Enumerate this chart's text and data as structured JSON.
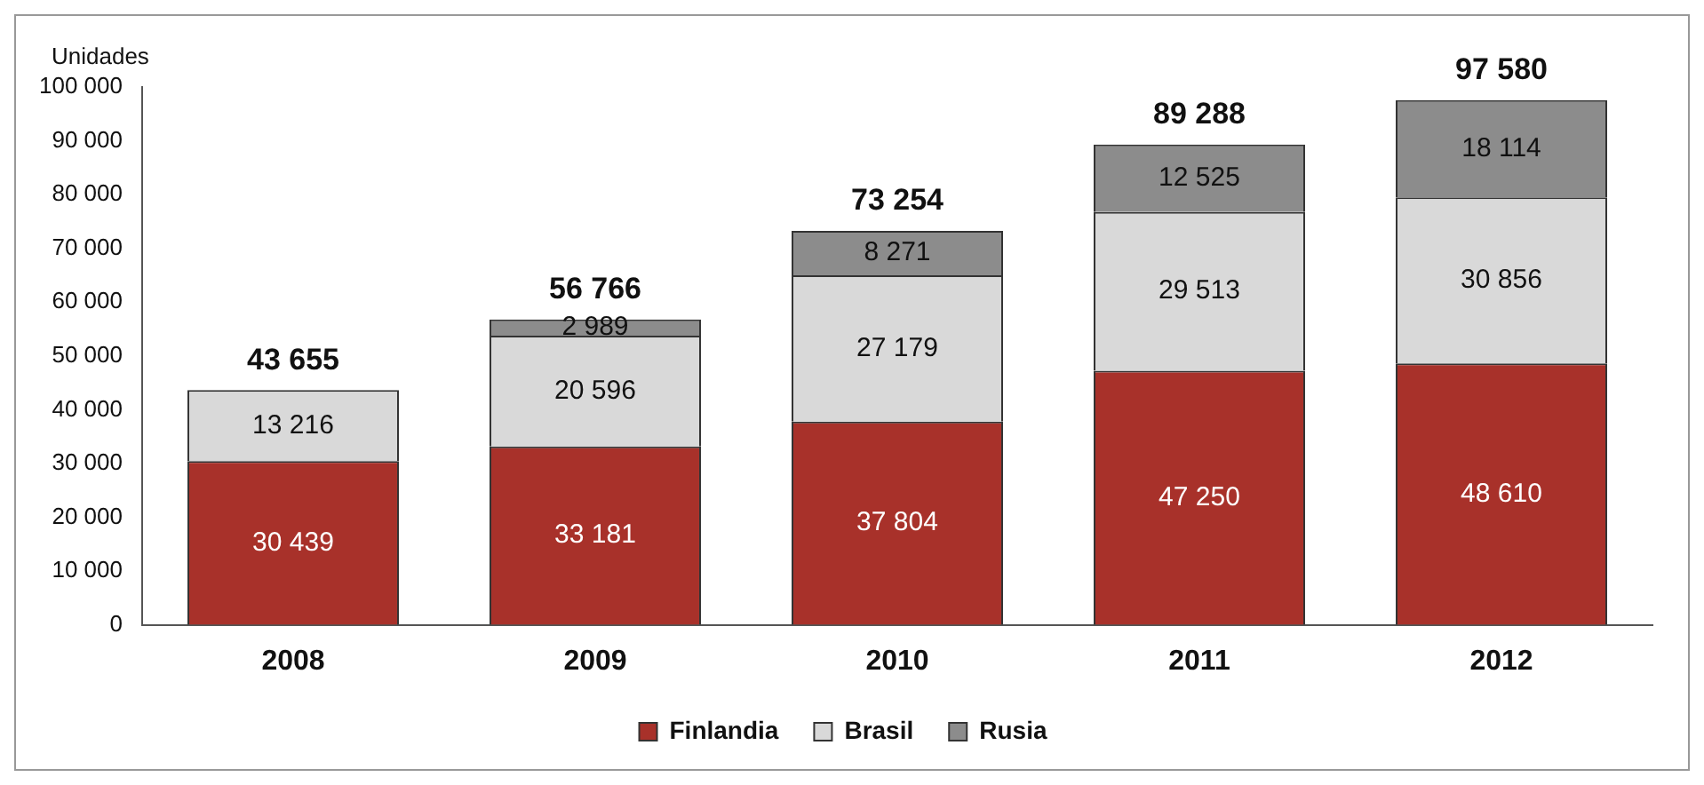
{
  "chart_data": {
    "type": "bar",
    "stacked": true,
    "ylabel": "Unidades",
    "categories": [
      "2008",
      "2009",
      "2010",
      "2011",
      "2012"
    ],
    "series": [
      {
        "name": "Finlandia",
        "color": "#a8312a",
        "values": [
          30439,
          33181,
          37804,
          47250,
          48610
        ],
        "value_labels": [
          "30 439",
          "33 181",
          "37 804",
          "47 250",
          "48 610"
        ]
      },
      {
        "name": "Brasil",
        "color": "#d9d9d9",
        "values": [
          13216,
          20596,
          27179,
          29513,
          30856
        ],
        "value_labels": [
          "13 216",
          "20 596",
          "27 179",
          "29 513",
          "30 856"
        ]
      },
      {
        "name": "Rusia",
        "color": "#8c8c8c",
        "values": [
          null,
          2989,
          8271,
          12525,
          18114
        ],
        "value_labels": [
          null,
          "2 989",
          "8 271",
          "12 525",
          "18 114"
        ]
      }
    ],
    "totals": [
      "43 655",
      "56 766",
      "73 254",
      "89 288",
      "97 580"
    ],
    "ylim": [
      0,
      100000
    ],
    "yticks": [
      0,
      {
        "value": 10000,
        "label": "10 000"
      },
      {
        "value": 20000,
        "label": "20 000"
      },
      {
        "value": 30000,
        "label": "30 000"
      },
      {
        "value": 40000,
        "label": "40 000"
      },
      {
        "value": 50000,
        "label": "50 000"
      },
      {
        "value": 60000,
        "label": "60 000"
      },
      {
        "value": 70000,
        "label": "70 000"
      },
      {
        "value": 80000,
        "label": "80 000"
      },
      {
        "value": 90000,
        "label": "90 000"
      },
      {
        "value": 100000,
        "label": "100 000"
      }
    ],
    "grid": false,
    "legend": "bottom"
  }
}
